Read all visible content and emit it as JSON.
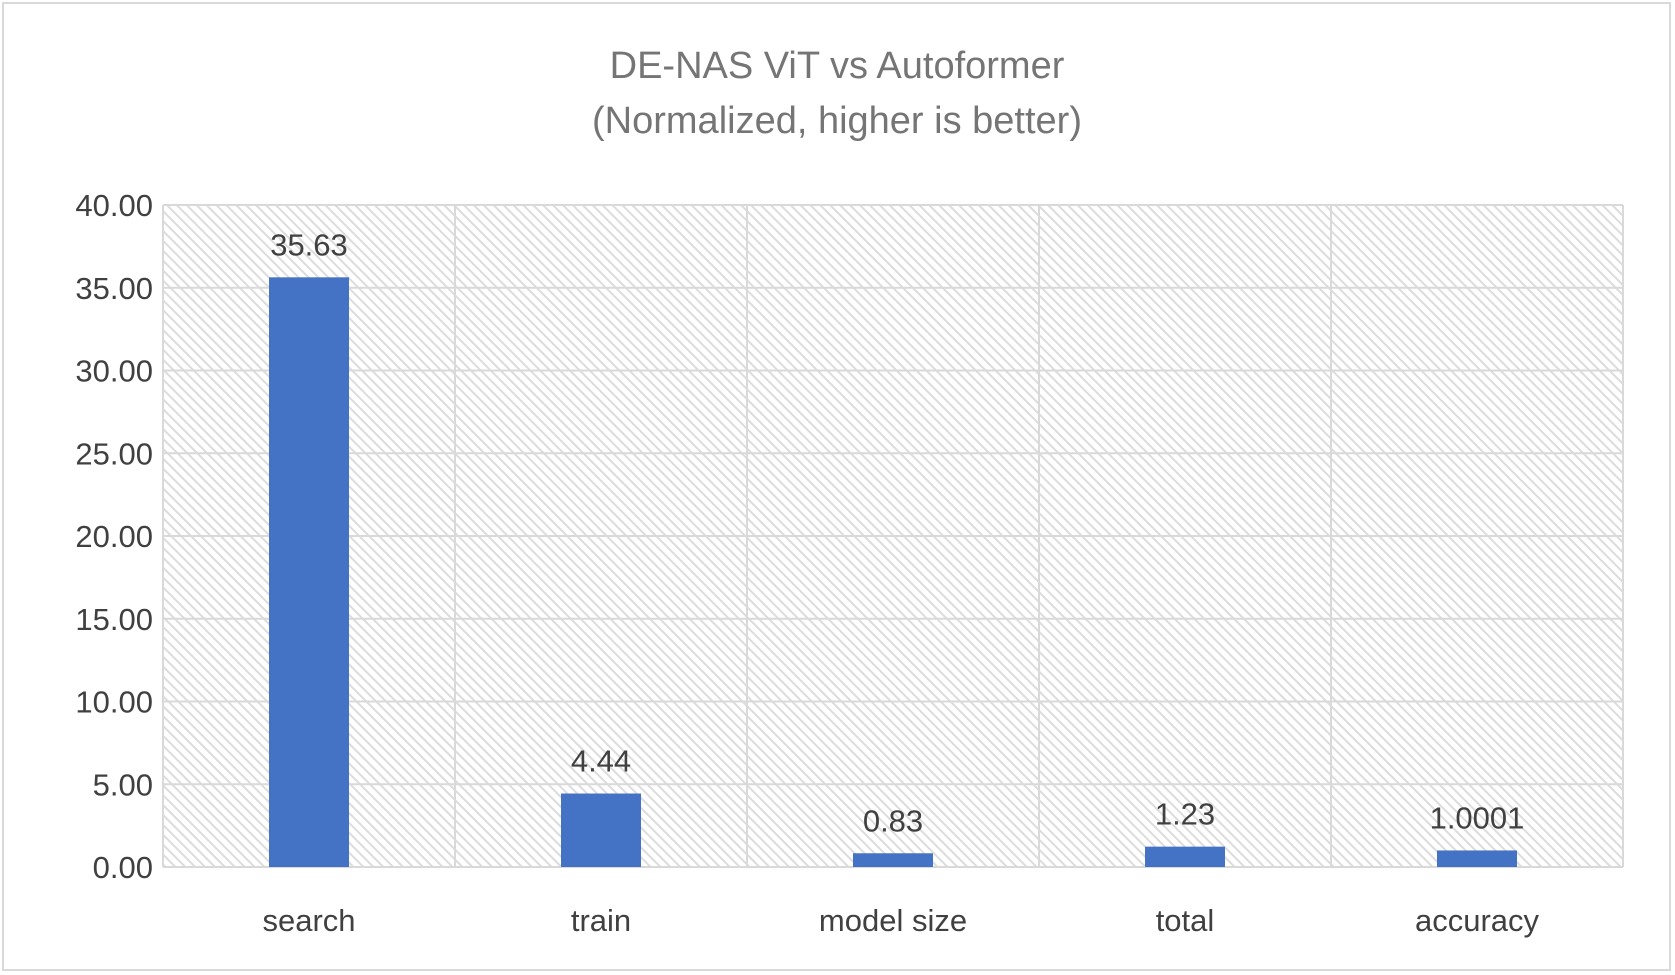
{
  "chart_data": {
    "type": "bar",
    "title": "DE-NAS ViT vs Autoformer",
    "subtitle": "(Normalized, higher is better)",
    "xlabel": "",
    "ylabel": "",
    "categories": [
      "search",
      "train",
      "model size",
      "total",
      "accuracy"
    ],
    "values": [
      35.63,
      4.44,
      0.83,
      1.23,
      1.0001
    ],
    "data_labels": [
      "35.63",
      "4.44",
      "0.83",
      "1.23",
      "1.0001"
    ],
    "ylim": [
      0,
      40
    ],
    "yticks": [
      0,
      5,
      10,
      15,
      20,
      25,
      30,
      35,
      40
    ],
    "ytick_labels": [
      "0.00",
      "5.00",
      "10.00",
      "15.00",
      "20.00",
      "25.00",
      "30.00",
      "35.00",
      "40.00"
    ],
    "grid": true,
    "legend": "none",
    "bar_color": "#4472c4",
    "plot_background": "hatched light gray"
  }
}
